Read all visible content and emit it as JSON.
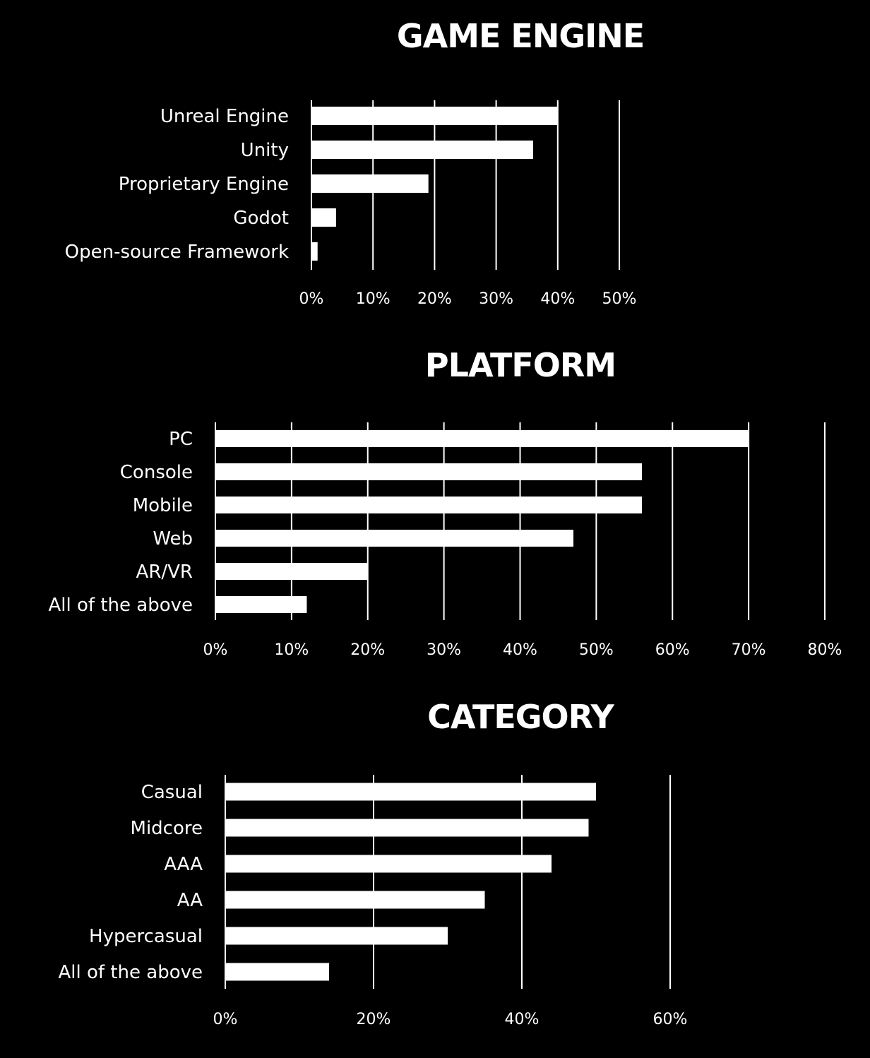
{
  "chart_data": [
    {
      "type": "bar",
      "orientation": "horizontal",
      "title": "GAME ENGINE",
      "categories": [
        "Unreal Engine",
        "Unity",
        "Proprietary Engine",
        "Godot",
        "Open-source Framework"
      ],
      "values": [
        40,
        36,
        19,
        4,
        1
      ],
      "unit": "%",
      "xlim": [
        0,
        50
      ],
      "ticks": [
        "0%",
        "10%",
        "20%",
        "30%",
        "40%",
        "50%"
      ],
      "tick_values": [
        0,
        10,
        20,
        30,
        40,
        50
      ],
      "grid": true,
      "bar_color": "#ffffff",
      "background": "#000000"
    },
    {
      "type": "bar",
      "orientation": "horizontal",
      "title": "PLATFORM",
      "categories": [
        "PC",
        "Console",
        "Mobile",
        "Web",
        "AR/VR",
        "All of the above"
      ],
      "values": [
        70,
        56,
        56,
        47,
        20,
        12
      ],
      "unit": "%",
      "xlim": [
        0,
        80
      ],
      "ticks": [
        "0%",
        "10%",
        "20%",
        "30%",
        "40%",
        "50%",
        "60%",
        "70%",
        "80%"
      ],
      "tick_values": [
        0,
        10,
        20,
        30,
        40,
        50,
        60,
        70,
        80
      ],
      "grid": true,
      "bar_color": "#ffffff",
      "background": "#000000"
    },
    {
      "type": "bar",
      "orientation": "horizontal",
      "title": "CATEGORY",
      "categories": [
        "Casual",
        "Midcore",
        "AAA",
        "AA",
        "Hypercasual",
        "All of the above"
      ],
      "values": [
        50,
        49,
        44,
        35,
        30,
        14
      ],
      "unit": "%",
      "xlim": [
        0,
        60
      ],
      "ticks": [
        "0%",
        "20%",
        "40%",
        "60%"
      ],
      "tick_values": [
        0,
        20,
        40,
        60
      ],
      "grid": true,
      "bar_color": "#ffffff",
      "background": "#000000"
    }
  ]
}
